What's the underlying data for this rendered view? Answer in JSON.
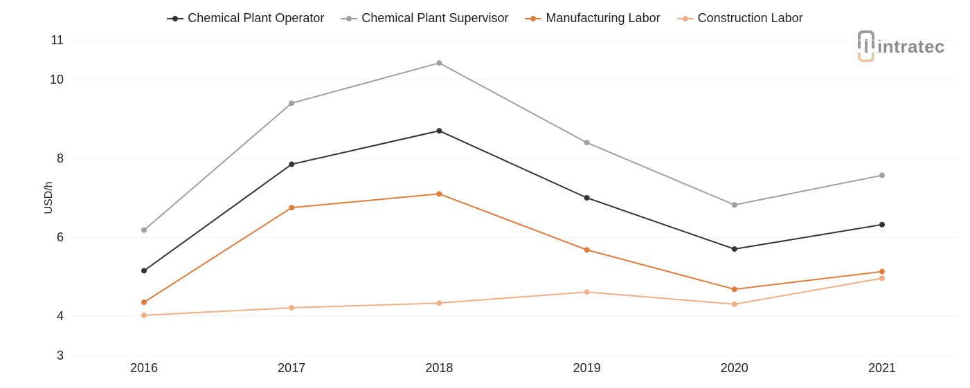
{
  "chart_data": {
    "type": "line",
    "x": [
      "2016",
      "2017",
      "2018",
      "2019",
      "2020",
      "2021"
    ],
    "ylabel": "USD/h",
    "ylim": [
      3,
      11
    ],
    "yticks": [
      3,
      4,
      6,
      8,
      10,
      11
    ],
    "grid": true,
    "legend_position": "top",
    "series": [
      {
        "name": "Chemical Plant Operator",
        "color": "#333333",
        "values": [
          5.15,
          7.85,
          8.7,
          7.0,
          5.7,
          6.32
        ]
      },
      {
        "name": "Chemical Plant Supervisor",
        "color": "#a0a0a0",
        "values": [
          6.18,
          9.4,
          10.42,
          8.4,
          6.82,
          7.57
        ]
      },
      {
        "name": "Manufacturing Labor",
        "color": "#e07b39",
        "values": [
          4.35,
          6.75,
          7.1,
          5.68,
          4.68,
          5.13
        ]
      },
      {
        "name": "Construction Labor",
        "color": "#f0b085",
        "values": [
          4.02,
          4.21,
          4.33,
          4.61,
          4.3,
          4.96
        ]
      }
    ]
  },
  "logo": {
    "text": "intratec",
    "icon": "intratec-logo-icon"
  }
}
